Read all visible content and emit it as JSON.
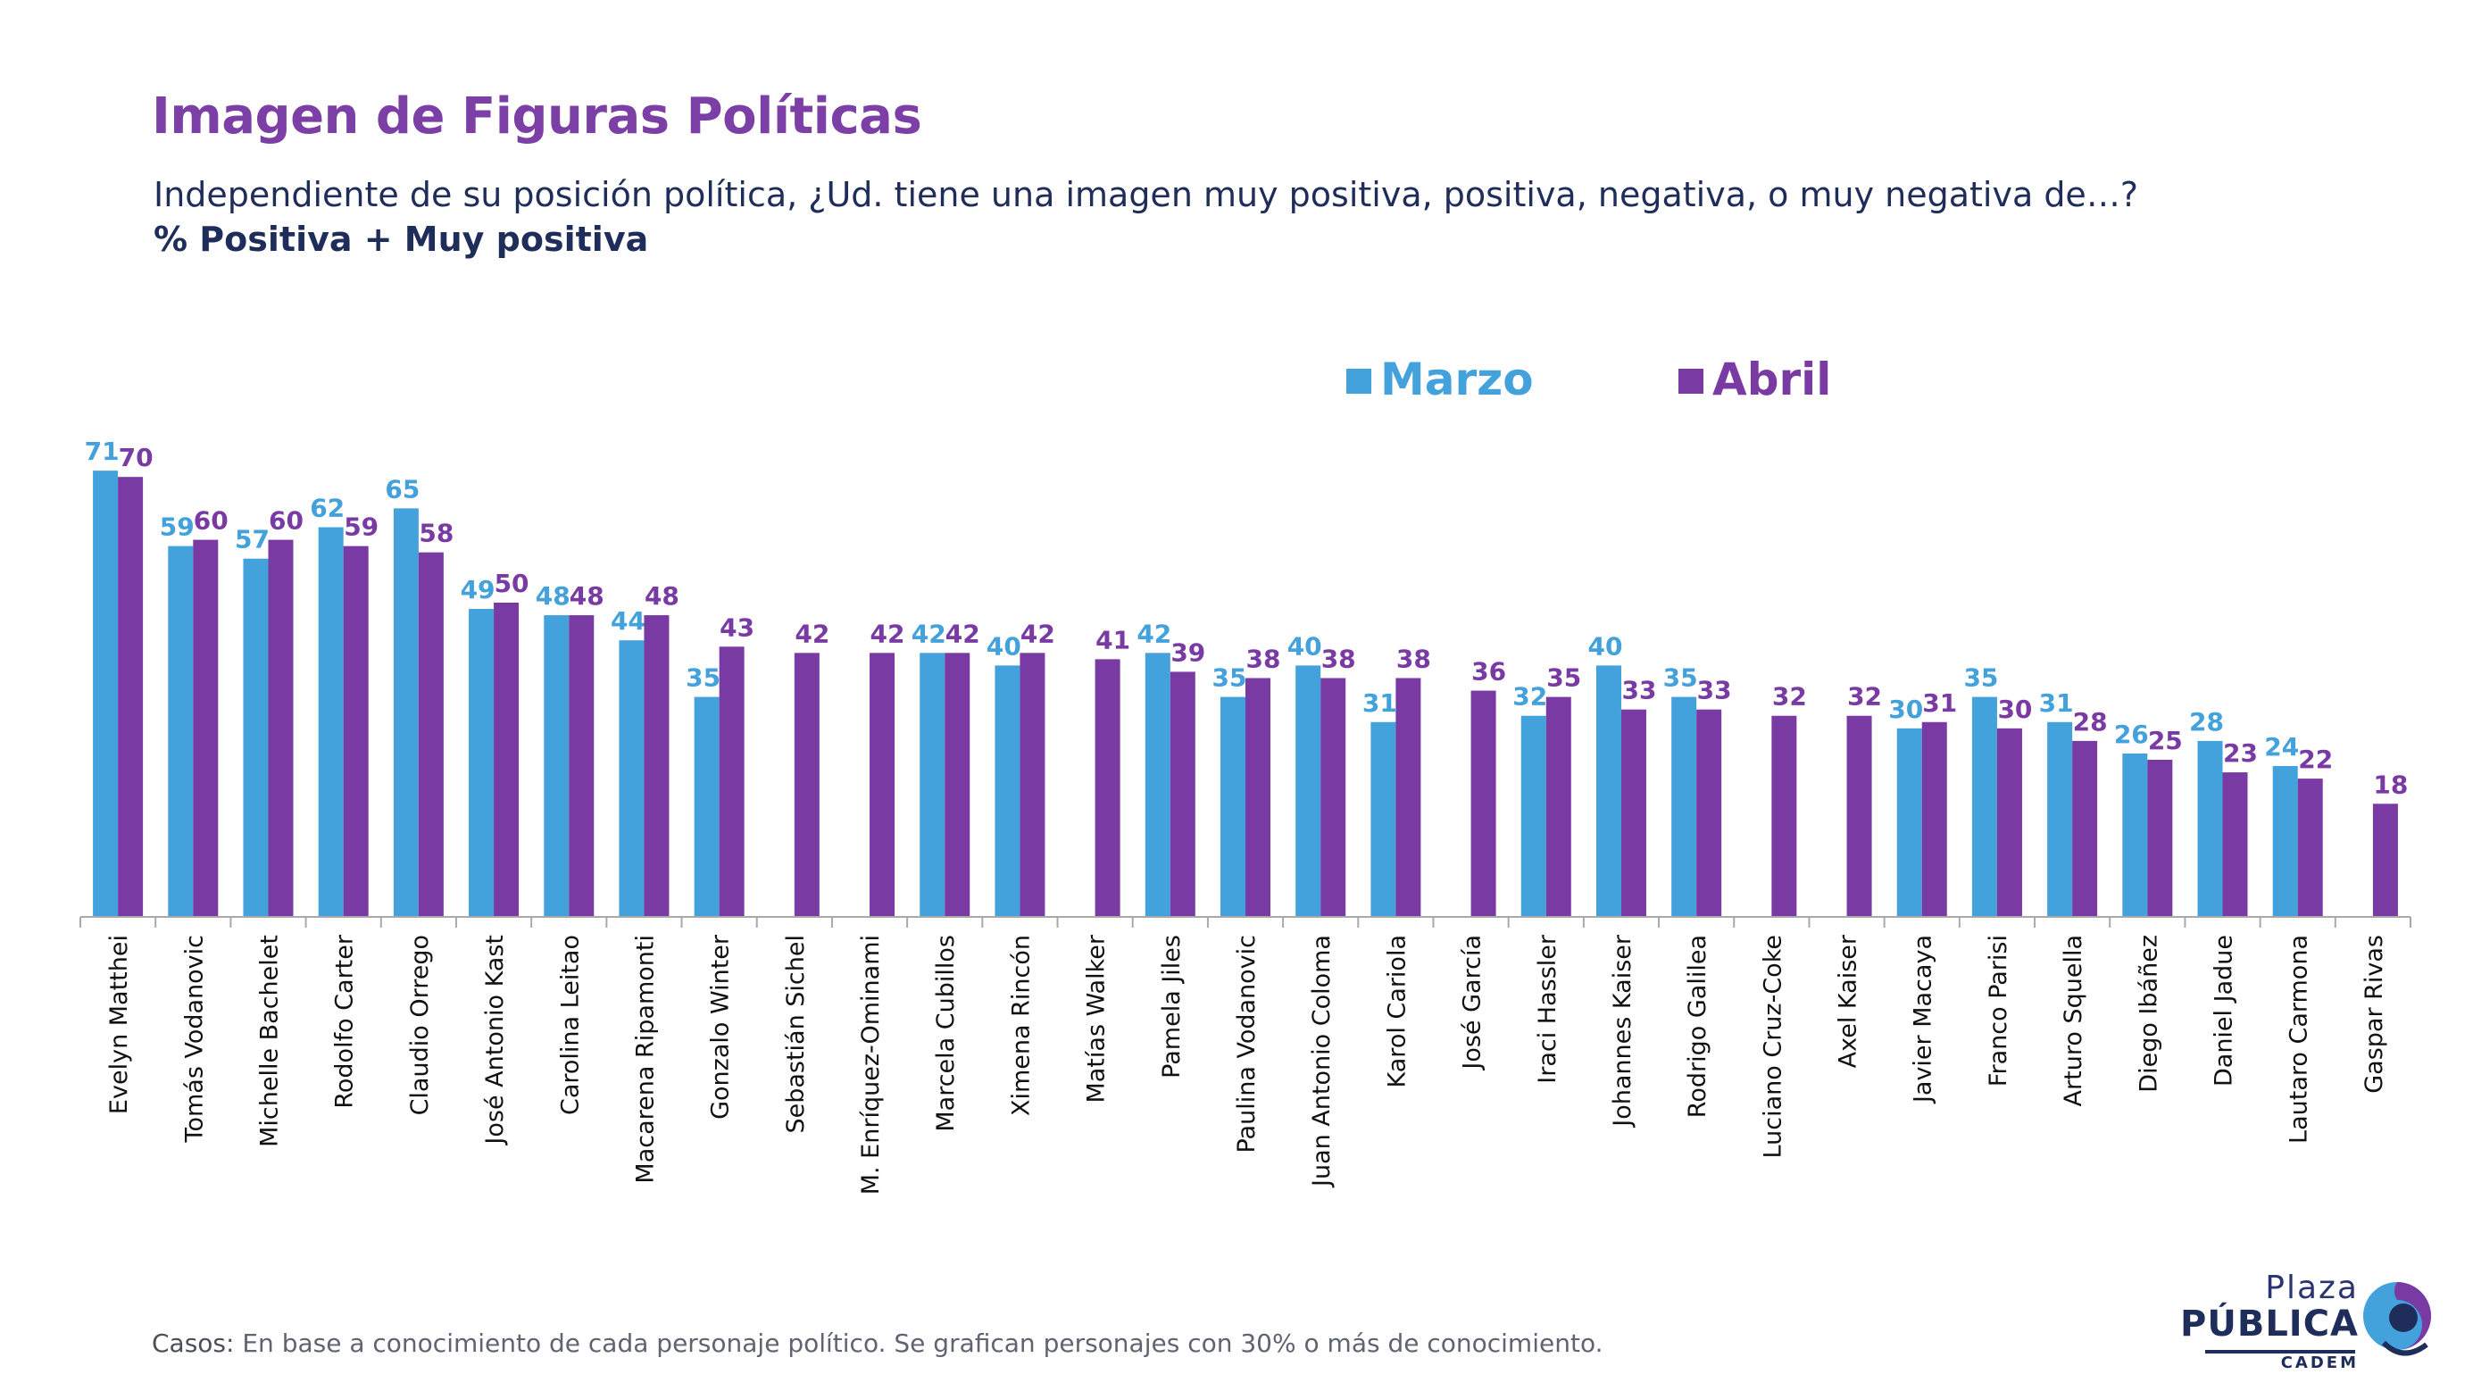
{
  "title": "Imagen de Figuras Políticas",
  "subtitle": "Independiente de su posición política, ¿Ud. tiene una imagen muy positiva, positiva, negativa, o muy negativa de…?",
  "measure": "% Positiva + Muy positiva",
  "footnote": {
    "label": "Casos:",
    "text": " En base a conocimiento de cada personaje político. Se grafican personajes con 30% o más de conocimiento."
  },
  "logo": {
    "line1": "Plaza",
    "line2": "PÚBLICA",
    "line3": "CADEM"
  },
  "colors": {
    "marzo": "#43A1DC",
    "abril": "#7A3AA3",
    "title": "#7B3FA6",
    "text": "#1F2D5A"
  },
  "chart_data": {
    "type": "bar",
    "title": "Imagen de Figuras Políticas",
    "xlabel": "",
    "ylabel": "",
    "ylim": [
      0,
      75
    ],
    "grid": false,
    "legend_position": "top-right",
    "categories": [
      "Evelyn Matthei",
      "Tomás Vodanovic",
      "Michelle Bachelet",
      "Rodolfo Carter",
      "Claudio Orrego",
      "José Antonio Kast",
      "Carolina Leitao",
      "Macarena Ripamonti",
      "Gonzalo Winter",
      "Sebastián Sichel",
      "M. Enríquez-Ominami",
      "Marcela Cubillos",
      "Ximena Rincón",
      "Matías Walker",
      "Pamela Jiles",
      "Paulina Vodanovic",
      "Juan Antonio Coloma",
      "Karol Cariola",
      "José García",
      "Iraci Hassler",
      "Johannes Kaiser",
      "Rodrigo Galilea",
      "Luciano Cruz-Coke",
      "Axel Kaiser",
      "Javier Macaya",
      "Franco Parisi",
      "Arturo Squella",
      "Diego Ibáñez",
      "Daniel Jadue",
      "Lautaro Carmona",
      "Gaspar Rivas"
    ],
    "series": [
      {
        "name": "Marzo",
        "color": "#43A1DC",
        "values": [
          71,
          59,
          57,
          62,
          65,
          49,
          48,
          44,
          35,
          null,
          null,
          42,
          40,
          null,
          42,
          35,
          40,
          31,
          null,
          32,
          40,
          35,
          null,
          null,
          30,
          35,
          31,
          26,
          28,
          24,
          null
        ]
      },
      {
        "name": "Abril",
        "color": "#7A3AA3",
        "values": [
          70,
          60,
          60,
          59,
          58,
          50,
          48,
          48,
          43,
          42,
          42,
          42,
          42,
          41,
          39,
          38,
          38,
          38,
          36,
          35,
          33,
          33,
          32,
          32,
          31,
          30,
          28,
          25,
          23,
          22,
          18
        ]
      }
    ]
  }
}
